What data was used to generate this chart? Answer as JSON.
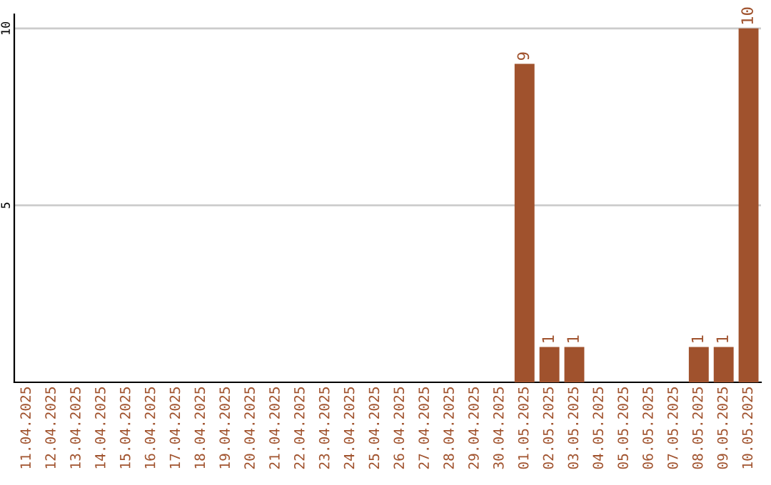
{
  "chart_data": {
    "type": "bar",
    "categories": [
      "11.04.2025",
      "12.04.2025",
      "13.04.2025",
      "14.04.2025",
      "15.04.2025",
      "16.04.2025",
      "17.04.2025",
      "18.04.2025",
      "19.04.2025",
      "20.04.2025",
      "21.04.2025",
      "22.04.2025",
      "23.04.2025",
      "24.04.2025",
      "25.04.2025",
      "26.04.2025",
      "27.04.2025",
      "28.04.2025",
      "29.04.2025",
      "30.04.2025",
      "01.05.2025",
      "02.05.2025",
      "03.05.2025",
      "04.05.2025",
      "05.05.2025",
      "06.05.2025",
      "07.05.2025",
      "08.05.2025",
      "09.05.2025",
      "10.05.2025"
    ],
    "values": [
      0,
      0,
      0,
      0,
      0,
      0,
      0,
      0,
      0,
      0,
      0,
      0,
      0,
      0,
      0,
      0,
      0,
      0,
      0,
      0,
      9,
      1,
      1,
      0,
      0,
      0,
      0,
      1,
      1,
      10
    ],
    "value_labels": [
      null,
      null,
      null,
      null,
      null,
      null,
      null,
      null,
      null,
      null,
      null,
      null,
      null,
      null,
      null,
      null,
      null,
      null,
      null,
      null,
      "9",
      "1",
      "1",
      null,
      null,
      null,
      null,
      "1",
      "1",
      "10"
    ],
    "color": "#a0522d",
    "ylim": [
      0,
      10.4
    ],
    "yticks": [
      5,
      10
    ],
    "grid": "y"
  }
}
